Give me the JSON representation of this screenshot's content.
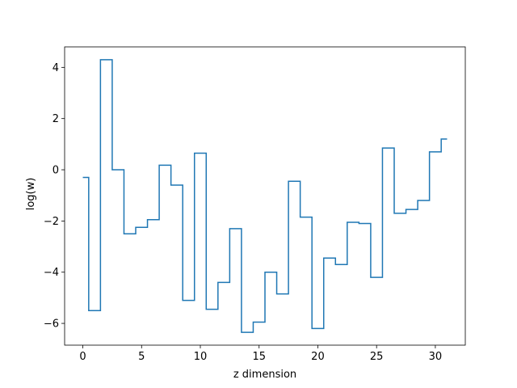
{
  "chart_data": {
    "type": "line",
    "drawstyle": "steps-mid",
    "title": "",
    "xlabel": "z dimension",
    "ylabel": "log(w)",
    "xlim": [
      -1.55,
      32.55
    ],
    "ylim": [
      -6.85,
      4.8
    ],
    "xticks": [
      0,
      5,
      10,
      15,
      20,
      25,
      30
    ],
    "xtick_labels": [
      "0",
      "5",
      "10",
      "15",
      "20",
      "25",
      "30"
    ],
    "yticks": [
      -6,
      -4,
      -2,
      0,
      2,
      4
    ],
    "ytick_labels": [
      "−6",
      "−4",
      "−2",
      "0",
      "2",
      "4"
    ],
    "grid": false,
    "legend": "none",
    "series": [
      {
        "color": "#1f77b4",
        "x": [
          0,
          1,
          2,
          3,
          4,
          5,
          6,
          7,
          8,
          9,
          10,
          11,
          12,
          13,
          14,
          15,
          16,
          17,
          18,
          19,
          20,
          21,
          22,
          23,
          24,
          25,
          26,
          27,
          28,
          29,
          30,
          31
        ],
        "values": [
          -0.3,
          -5.5,
          4.3,
          0.0,
          -2.5,
          -2.25,
          -1.95,
          0.18,
          -0.6,
          -5.1,
          0.65,
          -5.45,
          -4.4,
          -2.3,
          -6.35,
          -5.95,
          -4.0,
          -4.85,
          -0.45,
          -1.85,
          -6.2,
          -3.45,
          -3.7,
          -2.05,
          -2.1,
          -4.2,
          0.85,
          -1.7,
          -1.55,
          -1.2,
          0.7,
          1.2
        ]
      }
    ]
  }
}
